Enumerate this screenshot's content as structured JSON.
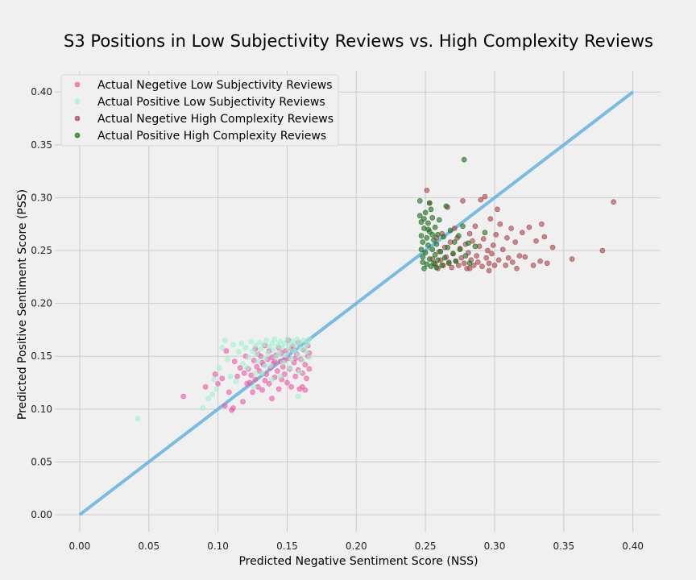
{
  "chart_data": {
    "type": "scatter",
    "title": "S3 Positions in Low Subjectivity Reviews vs. High Complexity Reviews",
    "xlabel": "Predicted Negative Sentiment Score (NSS)",
    "ylabel": "Predicted Positive Sentiment Score (PSS)",
    "xlim": [
      -0.018,
      0.42
    ],
    "ylim": [
      -0.016,
      0.42
    ],
    "xticks": [
      "0.00",
      "0.05",
      "0.10",
      "0.15",
      "0.20",
      "0.25",
      "0.30",
      "0.35",
      "0.40"
    ],
    "yticks": [
      "0.00",
      "0.05",
      "0.10",
      "0.15",
      "0.20",
      "0.25",
      "0.30",
      "0.35",
      "0.40"
    ],
    "grid": true,
    "legend_position": "top-left",
    "reference_line": {
      "x": [
        0.0,
        0.4
      ],
      "y": [
        0.0,
        0.4
      ],
      "color": "#6cb6e2"
    },
    "series": [
      {
        "name": "Actual Negetive Low Subjectivity Reviews",
        "color": "#ee5aa7",
        "points": [
          [
            0.075,
            0.112
          ],
          [
            0.091,
            0.121
          ],
          [
            0.098,
            0.133
          ],
          [
            0.1,
            0.124
          ],
          [
            0.103,
            0.129
          ],
          [
            0.105,
            0.103
          ],
          [
            0.106,
            0.155
          ],
          [
            0.108,
            0.116
          ],
          [
            0.11,
            0.099
          ],
          [
            0.111,
            0.101
          ],
          [
            0.112,
            0.145
          ],
          [
            0.114,
            0.131
          ],
          [
            0.116,
            0.139
          ],
          [
            0.118,
            0.107
          ],
          [
            0.12,
            0.15
          ],
          [
            0.121,
            0.124
          ],
          [
            0.122,
            0.138
          ],
          [
            0.124,
            0.132
          ],
          [
            0.125,
            0.116
          ],
          [
            0.126,
            0.146
          ],
          [
            0.127,
            0.128
          ],
          [
            0.128,
            0.14
          ],
          [
            0.129,
            0.121
          ],
          [
            0.13,
            0.136
          ],
          [
            0.131,
            0.15
          ],
          [
            0.132,
            0.118
          ],
          [
            0.133,
            0.142
          ],
          [
            0.134,
            0.127
          ],
          [
            0.135,
            0.133
          ],
          [
            0.136,
            0.147
          ],
          [
            0.137,
            0.124
          ],
          [
            0.138,
            0.139
          ],
          [
            0.139,
            0.11
          ],
          [
            0.14,
            0.143
          ],
          [
            0.141,
            0.13
          ],
          [
            0.142,
            0.151
          ],
          [
            0.143,
            0.136
          ],
          [
            0.144,
            0.119
          ],
          [
            0.145,
            0.145
          ],
          [
            0.146,
            0.128
          ],
          [
            0.147,
            0.14
          ],
          [
            0.148,
            0.133
          ],
          [
            0.149,
            0.155
          ],
          [
            0.15,
            0.125
          ],
          [
            0.151,
            0.148
          ],
          [
            0.152,
            0.138
          ],
          [
            0.153,
            0.121
          ],
          [
            0.154,
            0.159
          ],
          [
            0.155,
            0.144
          ],
          [
            0.156,
            0.131
          ],
          [
            0.157,
            0.152
          ],
          [
            0.158,
            0.137
          ],
          [
            0.159,
            0.119
          ],
          [
            0.16,
            0.147
          ],
          [
            0.161,
            0.134
          ],
          [
            0.162,
            0.156
          ],
          [
            0.163,
            0.142
          ],
          [
            0.164,
            0.129
          ],
          [
            0.165,
            0.15
          ],
          [
            0.166,
            0.138
          ],
          [
            0.166,
            0.153
          ],
          [
            0.165,
            0.16
          ],
          [
            0.163,
            0.118
          ],
          [
            0.161,
            0.121
          ],
          [
            0.158,
            0.163
          ],
          [
            0.156,
            0.148
          ],
          [
            0.153,
            0.157
          ],
          [
            0.151,
            0.165
          ],
          [
            0.148,
            0.146
          ],
          [
            0.146,
            0.153
          ],
          [
            0.144,
            0.158
          ],
          [
            0.141,
            0.145
          ],
          [
            0.139,
            0.149
          ],
          [
            0.137,
            0.155
          ],
          [
            0.134,
            0.16
          ],
          [
            0.132,
            0.144
          ],
          [
            0.129,
            0.152
          ],
          [
            0.127,
            0.157
          ],
          [
            0.123,
            0.125
          ],
          [
            0.119,
            0.134
          ]
        ]
      },
      {
        "name": "Actual Positive Low Subjectivity Reviews",
        "color": "#9ff2cf",
        "points": [
          [
            0.042,
            0.091
          ],
          [
            0.089,
            0.101
          ],
          [
            0.093,
            0.11
          ],
          [
            0.096,
            0.114
          ],
          [
            0.097,
            0.128
          ],
          [
            0.099,
            0.119
          ],
          [
            0.101,
            0.139
          ],
          [
            0.103,
            0.158
          ],
          [
            0.105,
            0.165
          ],
          [
            0.107,
            0.147
          ],
          [
            0.109,
            0.131
          ],
          [
            0.111,
            0.161
          ],
          [
            0.113,
            0.126
          ],
          [
            0.115,
            0.154
          ],
          [
            0.117,
            0.162
          ],
          [
            0.118,
            0.143
          ],
          [
            0.12,
            0.158
          ],
          [
            0.122,
            0.149
          ],
          [
            0.124,
            0.164
          ],
          [
            0.125,
            0.155
          ],
          [
            0.126,
            0.121
          ],
          [
            0.127,
            0.16
          ],
          [
            0.128,
            0.152
          ],
          [
            0.129,
            0.145
          ],
          [
            0.13,
            0.163
          ],
          [
            0.131,
            0.157
          ],
          [
            0.132,
            0.134
          ],
          [
            0.133,
            0.161
          ],
          [
            0.134,
            0.148
          ],
          [
            0.135,
            0.165
          ],
          [
            0.136,
            0.153
          ],
          [
            0.137,
            0.159
          ],
          [
            0.138,
            0.141
          ],
          [
            0.139,
            0.162
          ],
          [
            0.14,
            0.156
          ],
          [
            0.141,
            0.166
          ],
          [
            0.142,
            0.149
          ],
          [
            0.143,
            0.16
          ],
          [
            0.144,
            0.153
          ],
          [
            0.145,
            0.164
          ],
          [
            0.146,
            0.158
          ],
          [
            0.147,
            0.144
          ],
          [
            0.148,
            0.162
          ],
          [
            0.149,
            0.151
          ],
          [
            0.15,
            0.166
          ],
          [
            0.151,
            0.157
          ],
          [
            0.152,
            0.161
          ],
          [
            0.153,
            0.147
          ],
          [
            0.154,
            0.164
          ],
          [
            0.155,
            0.155
          ],
          [
            0.156,
            0.16
          ],
          [
            0.157,
            0.166
          ],
          [
            0.158,
            0.112
          ],
          [
            0.158,
            0.151
          ],
          [
            0.159,
            0.163
          ],
          [
            0.16,
            0.157
          ],
          [
            0.161,
            0.146
          ],
          [
            0.162,
            0.165
          ],
          [
            0.163,
            0.159
          ],
          [
            0.164,
            0.154
          ],
          [
            0.165,
            0.162
          ],
          [
            0.166,
            0.166
          ],
          [
            0.166,
            0.149
          ],
          [
            0.145,
            0.131
          ],
          [
            0.139,
            0.128
          ],
          [
            0.152,
            0.139
          ],
          [
            0.159,
            0.135
          ],
          [
            0.127,
            0.134
          ],
          [
            0.121,
            0.139
          ],
          [
            0.134,
            0.141
          ]
        ]
      },
      {
        "name": "Actual Negetive High Complexity Reviews",
        "color": "#a8454b",
        "points": [
          [
            0.251,
            0.307
          ],
          [
            0.253,
            0.295
          ],
          [
            0.255,
            0.242
          ],
          [
            0.257,
            0.237
          ],
          [
            0.258,
            0.262
          ],
          [
            0.259,
            0.233
          ],
          [
            0.26,
            0.249
          ],
          [
            0.261,
            0.241
          ],
          [
            0.262,
            0.266
          ],
          [
            0.263,
            0.236
          ],
          [
            0.264,
            0.253
          ],
          [
            0.265,
            0.244
          ],
          [
            0.266,
            0.291
          ],
          [
            0.267,
            0.239
          ],
          [
            0.268,
            0.258
          ],
          [
            0.269,
            0.234
          ],
          [
            0.27,
            0.247
          ],
          [
            0.271,
            0.271
          ],
          [
            0.272,
            0.24
          ],
          [
            0.273,
            0.262
          ],
          [
            0.274,
            0.236
          ],
          [
            0.275,
            0.252
          ],
          [
            0.276,
            0.243
          ],
          [
            0.277,
            0.297
          ],
          [
            0.278,
            0.238
          ],
          [
            0.279,
            0.256
          ],
          [
            0.28,
            0.233
          ],
          [
            0.281,
            0.248
          ],
          [
            0.282,
            0.266
          ],
          [
            0.283,
            0.241
          ],
          [
            0.284,
            0.259
          ],
          [
            0.285,
            0.236
          ],
          [
            0.286,
            0.273
          ],
          [
            0.287,
            0.245
          ],
          [
            0.288,
            0.239
          ],
          [
            0.289,
            0.254
          ],
          [
            0.29,
            0.298
          ],
          [
            0.291,
            0.235
          ],
          [
            0.292,
            0.261
          ],
          [
            0.293,
            0.301
          ],
          [
            0.294,
            0.243
          ],
          [
            0.295,
            0.25
          ],
          [
            0.296,
            0.238
          ],
          [
            0.297,
            0.28
          ],
          [
            0.298,
            0.247
          ],
          [
            0.299,
            0.255
          ],
          [
            0.3,
            0.236
          ],
          [
            0.301,
            0.265
          ],
          [
            0.302,
            0.289
          ],
          [
            0.303,
            0.241
          ],
          [
            0.304,
            0.275
          ],
          [
            0.306,
            0.251
          ],
          [
            0.308,
            0.236
          ],
          [
            0.309,
            0.262
          ],
          [
            0.31,
            0.243
          ],
          [
            0.312,
            0.271
          ],
          [
            0.313,
            0.239
          ],
          [
            0.315,
            0.258
          ],
          [
            0.316,
            0.233
          ],
          [
            0.318,
            0.245
          ],
          [
            0.32,
            0.267
          ],
          [
            0.322,
            0.244
          ],
          [
            0.325,
            0.272
          ],
          [
            0.328,
            0.236
          ],
          [
            0.33,
            0.259
          ],
          [
            0.333,
            0.24
          ],
          [
            0.334,
            0.275
          ],
          [
            0.336,
            0.263
          ],
          [
            0.338,
            0.238
          ],
          [
            0.342,
            0.253
          ],
          [
            0.356,
            0.242
          ],
          [
            0.378,
            0.25
          ],
          [
            0.386,
            0.296
          ],
          [
            0.282,
            0.233
          ],
          [
            0.296,
            0.231
          ]
        ]
      },
      {
        "name": "Actual Positive High Complexity Reviews",
        "color": "#1b6e1b",
        "points": [
          [
            0.246,
            0.297
          ],
          [
            0.246,
            0.283
          ],
          [
            0.247,
            0.277
          ],
          [
            0.247,
            0.264
          ],
          [
            0.247,
            0.251
          ],
          [
            0.248,
            0.239
          ],
          [
            0.248,
            0.244
          ],
          [
            0.248,
            0.258
          ],
          [
            0.249,
            0.271
          ],
          [
            0.249,
            0.233
          ],
          [
            0.25,
            0.286
          ],
          [
            0.25,
            0.248
          ],
          [
            0.251,
            0.262
          ],
          [
            0.251,
            0.237
          ],
          [
            0.252,
            0.276
          ],
          [
            0.252,
            0.255
          ],
          [
            0.253,
            0.242
          ],
          [
            0.253,
            0.268
          ],
          [
            0.254,
            0.289
          ],
          [
            0.254,
            0.235
          ],
          [
            0.255,
            0.251
          ],
          [
            0.255,
            0.281
          ],
          [
            0.256,
            0.26
          ],
          [
            0.256,
            0.238
          ],
          [
            0.257,
            0.272
          ],
          [
            0.257,
            0.246
          ],
          [
            0.258,
            0.256
          ],
          [
            0.258,
            0.234
          ],
          [
            0.259,
            0.265
          ],
          [
            0.259,
            0.241
          ],
          [
            0.26,
            0.279
          ],
          [
            0.261,
            0.249
          ],
          [
            0.262,
            0.236
          ],
          [
            0.263,
            0.263
          ],
          [
            0.264,
            0.243
          ],
          [
            0.265,
            0.292
          ],
          [
            0.266,
            0.253
          ],
          [
            0.267,
            0.238
          ],
          [
            0.268,
            0.269
          ],
          [
            0.27,
            0.247
          ],
          [
            0.271,
            0.258
          ],
          [
            0.272,
            0.24
          ],
          [
            0.274,
            0.264
          ],
          [
            0.275,
            0.251
          ],
          [
            0.277,
            0.273
          ],
          [
            0.278,
            0.336
          ],
          [
            0.279,
            0.245
          ],
          [
            0.281,
            0.257
          ],
          [
            0.282,
            0.238
          ],
          [
            0.286,
            0.254
          ],
          [
            0.293,
            0.267
          ],
          [
            0.249,
            0.28
          ],
          [
            0.252,
            0.27
          ],
          [
            0.255,
            0.265
          ],
          [
            0.253,
            0.295
          ]
        ]
      }
    ]
  }
}
